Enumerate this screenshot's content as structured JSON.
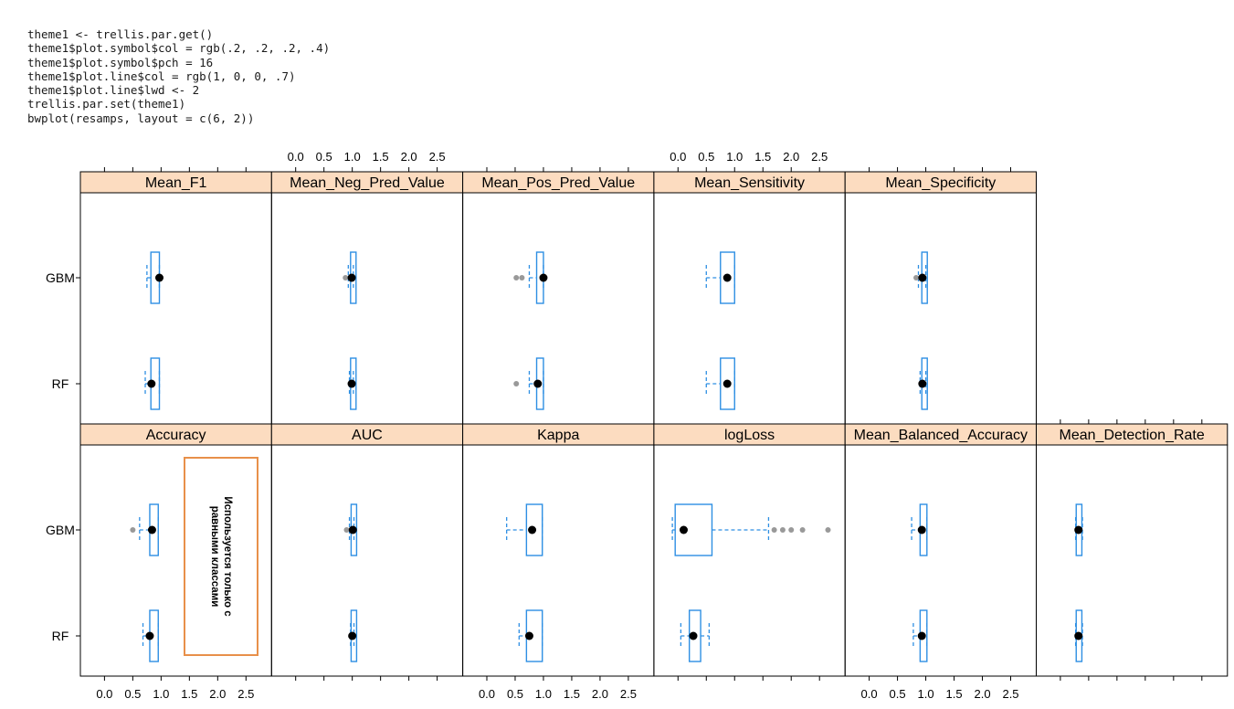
{
  "code_lines": [
    "theme1 <- trellis.par.get()",
    "theme1$plot.symbol$col = rgb(.2, .2, .2, .4)",
    "theme1$plot.symbol$pch = 16",
    "theme1$plot.line$col = rgb(1, 0, 0, .7)",
    "theme1$plot.line$lwd <- 2",
    "trellis.par.set(theme1)",
    "bwplot(resamps, layout = c(6, 2))"
  ],
  "annotation": {
    "line1": "Используется только с",
    "line2": "равными классами"
  },
  "colors": {
    "strip_bg": "#fcdcc0",
    "box": "#2e8fe3",
    "median_dot": "#000000",
    "outlier": "#999999",
    "annotation_border": "#e8904a"
  },
  "chart_data": {
    "type": "bwplot",
    "layout": [
      6,
      2
    ],
    "x_ticks": [
      "0.0",
      "0.5",
      "1.0",
      "1.5",
      "2.0",
      "2.5"
    ],
    "xlim": [
      -0.2,
      2.85
    ],
    "categories": [
      "GBM",
      "RF"
    ],
    "panels": [
      {
        "name": "Mean_F1",
        "label": "Mean_F1",
        "row": 0,
        "col": 0,
        "boxes": [
          {
            "model": "GBM",
            "lw": 0.75,
            "q1": 0.82,
            "med": 0.97,
            "q3": 0.97,
            "uw": 0.97
          },
          {
            "model": "RF",
            "lw": 0.72,
            "q1": 0.82,
            "med": 0.83,
            "q3": 0.97,
            "uw": 0.97
          }
        ]
      },
      {
        "name": "Mean_Neg_Pred_Value",
        "label": "Mean_Neg_Pred_Value",
        "row": 0,
        "col": 1,
        "boxes": [
          {
            "model": "GBM",
            "lw": 0.93,
            "q1": 0.97,
            "med": 0.99,
            "q3": 1.0,
            "uw": 1.02,
            "out": [
              0.88
            ]
          },
          {
            "model": "RF",
            "lw": 0.95,
            "q1": 0.97,
            "med": 0.99,
            "q3": 1.0,
            "uw": 1.02
          }
        ]
      },
      {
        "name": "Mean_Pos_Pred_Value",
        "label": "Mean_Pos_Pred_Value",
        "row": 0,
        "col": 2,
        "boxes": [
          {
            "model": "GBM",
            "lw": 0.75,
            "q1": 0.88,
            "med": 1.0,
            "q3": 1.0,
            "uw": 1.0,
            "out": [
              0.52,
              0.62
            ]
          },
          {
            "model": "RF",
            "lw": 0.75,
            "q1": 0.88,
            "med": 0.9,
            "q3": 1.0,
            "uw": 1.0,
            "out": [
              0.52
            ]
          }
        ]
      },
      {
        "name": "Mean_Sensitivity",
        "label": "Mean_Sensitivity",
        "row": 0,
        "col": 3,
        "boxes": [
          {
            "model": "GBM",
            "lw": 0.5,
            "q1": 0.75,
            "med": 0.87,
            "q3": 1.0,
            "uw": 1.0
          },
          {
            "model": "RF",
            "lw": 0.5,
            "q1": 0.75,
            "med": 0.87,
            "q3": 1.0,
            "uw": 1.0
          }
        ]
      },
      {
        "name": "Mean_Specificity",
        "label": "Mean_Specificity",
        "row": 0,
        "col": 4,
        "boxes": [
          {
            "model": "GBM",
            "lw": 0.87,
            "q1": 0.93,
            "med": 0.94,
            "q3": 1.0,
            "uw": 1.0,
            "out": [
              0.83
            ]
          },
          {
            "model": "RF",
            "lw": 0.9,
            "q1": 0.93,
            "med": 0.94,
            "q3": 1.0,
            "uw": 1.0
          }
        ]
      },
      {
        "name": "Accuracy",
        "label": "Accuracy",
        "row": 1,
        "col": 0,
        "boxes": [
          {
            "model": "GBM",
            "lw": 0.62,
            "q1": 0.8,
            "med": 0.84,
            "q3": 0.95,
            "uw": 0.95,
            "out": [
              0.5
            ]
          },
          {
            "model": "RF",
            "lw": 0.68,
            "q1": 0.8,
            "med": 0.8,
            "q3": 0.95,
            "uw": 0.95
          }
        ]
      },
      {
        "name": "AUC",
        "label": "AUC",
        "row": 1,
        "col": 1,
        "boxes": [
          {
            "model": "GBM",
            "lw": 0.95,
            "q1": 0.98,
            "med": 1.01,
            "q3": 1.02,
            "uw": 1.03,
            "out": [
              0.9
            ]
          },
          {
            "model": "RF",
            "lw": 0.97,
            "q1": 0.98,
            "med": 1.0,
            "q3": 1.02,
            "uw": 1.03
          }
        ]
      },
      {
        "name": "Kappa",
        "label": "Kappa",
        "row": 1,
        "col": 2,
        "boxes": [
          {
            "model": "GBM",
            "lw": 0.35,
            "q1": 0.7,
            "med": 0.8,
            "q3": 0.98,
            "uw": 0.98
          },
          {
            "model": "RF",
            "lw": 0.57,
            "q1": 0.7,
            "med": 0.75,
            "q3": 0.98,
            "uw": 0.98
          }
        ]
      },
      {
        "name": "logLoss",
        "label": "logLoss",
        "row": 1,
        "col": 3,
        "boxes": [
          {
            "model": "GBM",
            "lw": -0.1,
            "q1": -0.05,
            "med": 0.1,
            "q3": 0.6,
            "uw": 1.6,
            "out": [
              1.7,
              1.85,
              2.0,
              2.2,
              2.65
            ]
          },
          {
            "model": "RF",
            "lw": 0.05,
            "q1": 0.2,
            "med": 0.27,
            "q3": 0.4,
            "uw": 0.55
          }
        ]
      },
      {
        "name": "Mean_Balanced_Accuracy",
        "label": "Mean_Balanced_Accuracy",
        "row": 1,
        "col": 4,
        "boxes": [
          {
            "model": "GBM",
            "lw": 0.75,
            "q1": 0.9,
            "med": 0.93,
            "q3": 1.02,
            "uw": 1.02
          },
          {
            "model": "RF",
            "lw": 0.78,
            "q1": 0.9,
            "med": 0.93,
            "q3": 1.02,
            "uw": 1.02
          }
        ]
      },
      {
        "name": "Mean_Detection_Rate",
        "label": "Mean_Detection_Rate",
        "row": 1,
        "col": 5,
        "boxes": [
          {
            "model": "GBM",
            "lw": 0.27,
            "q1": 0.28,
            "med": 0.32,
            "q3": 0.38,
            "uw": 0.39
          },
          {
            "model": "RF",
            "lw": 0.27,
            "q1": 0.28,
            "med": 0.32,
            "q3": 0.38,
            "uw": 0.39
          }
        ]
      }
    ]
  }
}
